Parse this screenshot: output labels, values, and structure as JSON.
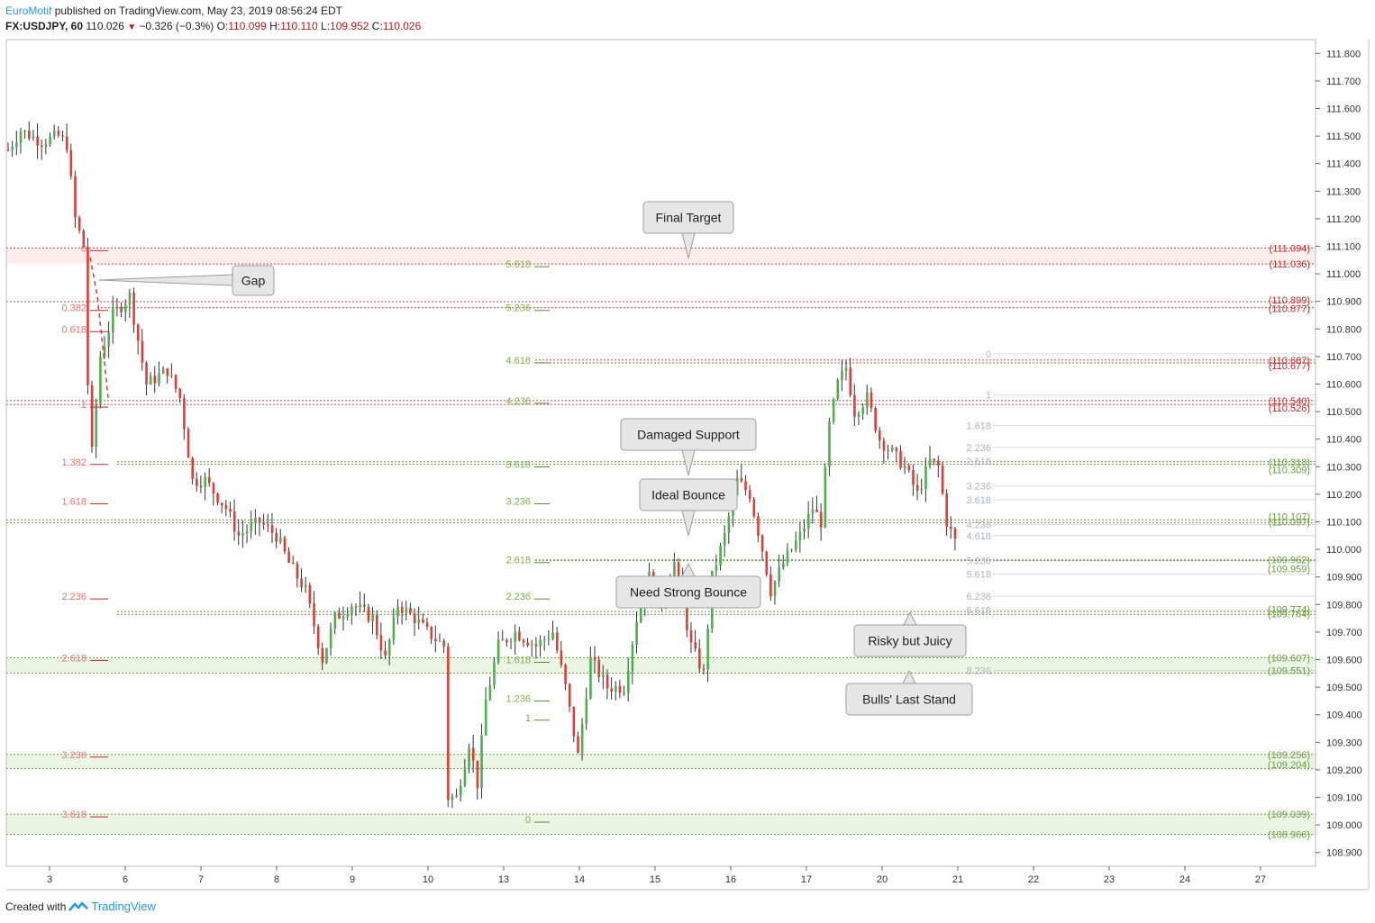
{
  "header": {
    "brand": "EuroMotif",
    "published": " published on TradingView.com, May 23, 2019 08:56:24 EDT",
    "symbol": "FX:USDJPY, 60",
    "last": "110.026",
    "change": "−0.326 (−0.3%)",
    "o_label": "O:",
    "o": "110.099",
    "h_label": "H:",
    "h": "110.110",
    "l_label": "L:",
    "l": "109.952",
    "c_label": "C:",
    "c": "110.026"
  },
  "footer": {
    "created_with": "Created with",
    "brand": "TradingView"
  },
  "colors": {
    "up": "#4caf50",
    "down": "#e53935",
    "red_level": "#c62828",
    "green_level": "#558b2f",
    "gray_level": "#b0b0b0",
    "band_red": "#fdecec",
    "band_green": "#eaf5e4"
  },
  "chart_data": {
    "type": "candlestick",
    "symbol": "FX:USDJPY",
    "timeframe": "60",
    "ylim": [
      108.85,
      111.85
    ],
    "y_ticks": [
      "111.800",
      "111.700",
      "111.600",
      "111.500",
      "111.400",
      "111.300",
      "111.200",
      "111.100",
      "111.000",
      "110.900",
      "110.800",
      "110.700",
      "110.600",
      "110.500",
      "110.400",
      "110.300",
      "110.200",
      "110.100",
      "110.000",
      "109.900",
      "109.800",
      "109.700",
      "109.600",
      "109.500",
      "109.400",
      "109.300",
      "109.200",
      "109.100",
      "109.000",
      "108.900"
    ],
    "x_ticks": [
      {
        "label": "3",
        "day": 3
      },
      {
        "label": "6",
        "day": 6
      },
      {
        "label": "7",
        "day": 7
      },
      {
        "label": "8",
        "day": 8
      },
      {
        "label": "9",
        "day": 9
      },
      {
        "label": "10",
        "day": 10
      },
      {
        "label": "13",
        "day": 13
      },
      {
        "label": "14",
        "day": 14
      },
      {
        "label": "15",
        "day": 15
      },
      {
        "label": "16",
        "day": 16
      },
      {
        "label": "17",
        "day": 17
      },
      {
        "label": "20",
        "day": 20
      },
      {
        "label": "21",
        "day": 21
      },
      {
        "label": "22",
        "day": 22
      },
      {
        "label": "23",
        "day": 23
      },
      {
        "label": "24",
        "day": 24
      },
      {
        "label": "27",
        "day": 27
      }
    ],
    "price_path": [
      {
        "t": 0,
        "p": 111.45
      },
      {
        "t": 3,
        "p": 111.52
      },
      {
        "t": 8,
        "p": 111.48
      },
      {
        "t": 12,
        "p": 111.5
      },
      {
        "t": 14,
        "p": 111.47
      },
      {
        "t": 16,
        "p": 111.2
      },
      {
        "t": 18,
        "p": 111.1
      },
      {
        "t": 19,
        "p": 110.6
      },
      {
        "t": 20,
        "p": 110.35
      },
      {
        "t": 22,
        "p": 110.7
      },
      {
        "t": 25,
        "p": 110.85
      },
      {
        "t": 29,
        "p": 110.92
      },
      {
        "t": 33,
        "p": 110.6
      },
      {
        "t": 38,
        "p": 110.65
      },
      {
        "t": 41,
        "p": 110.55
      },
      {
        "t": 44,
        "p": 110.25
      },
      {
        "t": 47,
        "p": 110.25
      },
      {
        "t": 52,
        "p": 110.15
      },
      {
        "t": 55,
        "p": 110.05
      },
      {
        "t": 60,
        "p": 110.1
      },
      {
        "t": 64,
        "p": 110.05
      },
      {
        "t": 67,
        "p": 109.95
      },
      {
        "t": 71,
        "p": 109.85
      },
      {
        "t": 75,
        "p": 109.6
      },
      {
        "t": 78,
        "p": 109.75
      },
      {
        "t": 82,
        "p": 109.8
      },
      {
        "t": 87,
        "p": 109.75
      },
      {
        "t": 90,
        "p": 109.6
      },
      {
        "t": 93,
        "p": 109.8
      },
      {
        "t": 97,
        "p": 109.75
      },
      {
        "t": 100,
        "p": 109.7
      },
      {
        "t": 104,
        "p": 109.65
      },
      {
        "t": 105,
        "p": 109.1
      },
      {
        "t": 107,
        "p": 109.1
      },
      {
        "t": 110,
        "p": 109.3
      },
      {
        "t": 112,
        "p": 109.15
      },
      {
        "t": 114,
        "p": 109.45
      },
      {
        "t": 117,
        "p": 109.65
      },
      {
        "t": 121,
        "p": 109.7
      },
      {
        "t": 126,
        "p": 109.65
      },
      {
        "t": 130,
        "p": 109.7
      },
      {
        "t": 133,
        "p": 109.5
      },
      {
        "t": 136,
        "p": 109.25
      },
      {
        "t": 139,
        "p": 109.6
      },
      {
        "t": 143,
        "p": 109.5
      },
      {
        "t": 147,
        "p": 109.5
      },
      {
        "t": 150,
        "p": 109.75
      },
      {
        "t": 153,
        "p": 109.9
      },
      {
        "t": 156,
        "p": 109.82
      },
      {
        "t": 159,
        "p": 109.95
      },
      {
        "t": 161,
        "p": 109.8
      },
      {
        "t": 163,
        "p": 109.65
      },
      {
        "t": 166,
        "p": 109.55
      },
      {
        "t": 168,
        "p": 109.9
      },
      {
        "t": 171,
        "p": 110.05
      },
      {
        "t": 174,
        "p": 110.25
      },
      {
        "t": 177,
        "p": 110.2
      },
      {
        "t": 180,
        "p": 110.0
      },
      {
        "t": 182,
        "p": 109.85
      },
      {
        "t": 185,
        "p": 109.95
      },
      {
        "t": 189,
        "p": 110.05
      },
      {
        "t": 192,
        "p": 110.15
      },
      {
        "t": 194,
        "p": 110.1
      },
      {
        "t": 196,
        "p": 110.45
      },
      {
        "t": 198,
        "p": 110.6
      },
      {
        "t": 200,
        "p": 110.66
      },
      {
        "t": 202,
        "p": 110.5
      },
      {
        "t": 205,
        "p": 110.55
      },
      {
        "t": 208,
        "p": 110.4
      },
      {
        "t": 211,
        "p": 110.35
      },
      {
        "t": 214,
        "p": 110.3
      },
      {
        "t": 217,
        "p": 110.2
      },
      {
        "t": 220,
        "p": 110.32
      },
      {
        "t": 222,
        "p": 110.3
      },
      {
        "t": 224,
        "p": 110.1
      },
      {
        "t": 226,
        "p": 110.03
      }
    ],
    "fib_left": {
      "levels": [
        {
          "label": "0",
          "price": 111.094
        },
        {
          "label": "0.382",
          "price": 110.877
        },
        {
          "label": "0.618",
          "price": 110.8
        },
        {
          "label": "1",
          "price": 110.526
        },
        {
          "label": "1.382",
          "price": 110.318
        },
        {
          "label": "1.618",
          "price": 110.175
        },
        {
          "label": "2.236",
          "price": 109.83
        },
        {
          "label": "2.618",
          "price": 109.607
        },
        {
          "label": "3.236",
          "price": 109.256
        },
        {
          "label": "3.618",
          "price": 109.039
        }
      ]
    },
    "fib_mid": {
      "levels": [
        {
          "label": "5.618",
          "price": 111.036
        },
        {
          "label": "5.236",
          "price": 110.877
        },
        {
          "label": "4.618",
          "price": 110.687
        },
        {
          "label": "4.236",
          "price": 110.54
        },
        {
          "label": "3.618",
          "price": 110.309
        },
        {
          "label": "3.236",
          "price": 110.175
        },
        {
          "label": "2.618",
          "price": 109.962
        },
        {
          "label": "2.236",
          "price": 109.83
        },
        {
          "label": "1.618",
          "price": 109.6
        },
        {
          "label": "1.236",
          "price": 109.46
        },
        {
          "label": "1",
          "price": 109.39
        },
        {
          "label": "0",
          "price": 109.02
        }
      ]
    },
    "fib_right": {
      "levels": [
        {
          "label": "0",
          "price": 110.71
        },
        {
          "label": "1",
          "price": 110.56
        },
        {
          "label": "1.618",
          "price": 110.45
        },
        {
          "label": "2.236",
          "price": 110.37
        },
        {
          "label": "2.618",
          "price": 110.32
        },
        {
          "label": "3.236",
          "price": 110.23
        },
        {
          "label": "3.618",
          "price": 110.18
        },
        {
          "label": "4.236",
          "price": 110.09
        },
        {
          "label": "4.618",
          "price": 110.05
        },
        {
          "label": "5.236",
          "price": 109.96
        },
        {
          "label": "5.618",
          "price": 109.91
        },
        {
          "label": "6.236",
          "price": 109.83
        },
        {
          "label": "6.618",
          "price": 109.78
        },
        {
          "label": "8.236",
          "price": 109.56
        }
      ]
    },
    "price_labels": [
      {
        "text": "(111.094)",
        "price": 111.094,
        "color": "red"
      },
      {
        "text": "(111.036)",
        "price": 111.036,
        "color": "red"
      },
      {
        "text": "(110.899)",
        "price": 110.905,
        "color": "red"
      },
      {
        "text": "(110.877)",
        "price": 110.875,
        "color": "red"
      },
      {
        "text": "(110.687)",
        "price": 110.687,
        "color": "red"
      },
      {
        "text": "(110.677)",
        "price": 110.667,
        "color": "red"
      },
      {
        "text": "(110.540)",
        "price": 110.54,
        "color": "red"
      },
      {
        "text": "(110.526)",
        "price": 110.513,
        "color": "red"
      },
      {
        "text": "(110.318)",
        "price": 110.318,
        "color": "green"
      },
      {
        "text": "(110.309)",
        "price": 110.29,
        "color": "green"
      },
      {
        "text": "(110.107)",
        "price": 110.12,
        "color": "green"
      },
      {
        "text": "(110.097)",
        "price": 110.1,
        "color": "green"
      },
      {
        "text": "(109.962)",
        "price": 109.962,
        "color": "green"
      },
      {
        "text": "(109.959)",
        "price": 109.93,
        "color": "green"
      },
      {
        "text": "(109.774)",
        "price": 109.783,
        "color": "green"
      },
      {
        "text": "(109.764)",
        "price": 109.767,
        "color": "green"
      },
      {
        "text": "(109.607)",
        "price": 109.607,
        "color": "green"
      },
      {
        "text": "(109.551)",
        "price": 109.56,
        "color": "green"
      },
      {
        "text": "(109.256)",
        "price": 109.256,
        "color": "green"
      },
      {
        "text": "(109.204)",
        "price": 109.22,
        "color": "green"
      },
      {
        "text": "(109.039)",
        "price": 109.039,
        "color": "green"
      },
      {
        "text": "(108.966)",
        "price": 108.966,
        "color": "green"
      }
    ],
    "annotations": [
      {
        "text": "Final Target"
      },
      {
        "text": "Gap"
      },
      {
        "text": "Damaged Support"
      },
      {
        "text": "Ideal Bounce"
      },
      {
        "text": "Need Strong Bounce"
      },
      {
        "text": "Risky but Juicy"
      },
      {
        "text": "Bulls' Last Stand"
      }
    ]
  }
}
